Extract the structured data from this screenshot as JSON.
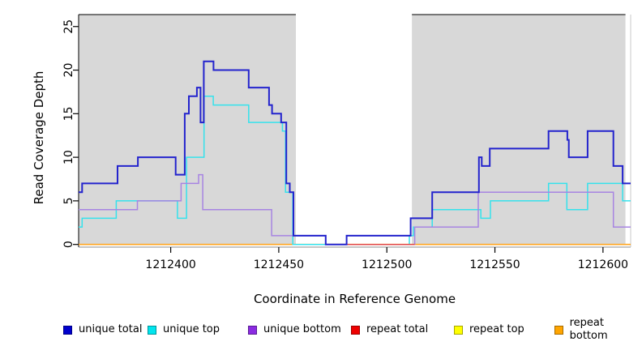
{
  "figure": {
    "title": "",
    "xlabel": "Coordinate in Reference Genome",
    "ylabel": "Read Coverage Depth"
  },
  "chart_data": {
    "type": "line",
    "subtype": "step",
    "title": "",
    "xlabel": "Coordinate in Reference Genome",
    "ylabel": "Read Coverage Depth",
    "xlim": [
      1212357.4,
      1212612.8
    ],
    "ylim": [
      0,
      26.4
    ],
    "x_ticks": [
      1212400,
      1212450,
      1212500,
      1212550,
      1212600
    ],
    "y_ticks": [
      0,
      5,
      10,
      15,
      20,
      25
    ],
    "grid": false,
    "background_color": "#ffffff",
    "shade_color": "#d8d8d8",
    "background_shaded_regions": [
      [
        1212357.4,
        1212457.9
      ],
      [
        1212511.6,
        1212610.4
      ]
    ],
    "legend_position": "bottom",
    "series": [
      {
        "name": "unique total",
        "color": "#2323cd",
        "width": 2,
        "breakpoints": [
          [
            1212357.4,
            6
          ],
          [
            1212359,
            7
          ],
          [
            1212375.4,
            9
          ],
          [
            1212384.8,
            10
          ],
          [
            1212402.3,
            8
          ],
          [
            1212406.5,
            15
          ],
          [
            1212408.4,
            17
          ],
          [
            1212412.1,
            18
          ],
          [
            1212413.8,
            14
          ],
          [
            1212415.3,
            21
          ],
          [
            1212419.8,
            20
          ],
          [
            1212436.1,
            18
          ],
          [
            1212445.5,
            16
          ],
          [
            1212446.9,
            15
          ],
          [
            1212451.1,
            14
          ],
          [
            1212453.5,
            7
          ],
          [
            1212455.1,
            6
          ],
          [
            1212456.8,
            1
          ],
          [
            1212471.7,
            0
          ],
          [
            1212481.4,
            1
          ],
          [
            1212511.0,
            3
          ],
          [
            1212521.0,
            6
          ],
          [
            1212542.6,
            10
          ],
          [
            1212543.9,
            9
          ],
          [
            1212547.6,
            11
          ],
          [
            1212574.8,
            13
          ],
          [
            1212583.5,
            12
          ],
          [
            1212584.2,
            10
          ],
          [
            1212592.9,
            13
          ],
          [
            1212604.8,
            9
          ],
          [
            1212609.1,
            7
          ]
        ]
      },
      {
        "name": "unique top",
        "color": "#35e2ec",
        "width": 1.5,
        "breakpoints": [
          [
            1212357.4,
            2
          ],
          [
            1212359,
            3
          ],
          [
            1212374.8,
            5
          ],
          [
            1212403.1,
            3
          ],
          [
            1212407.3,
            10
          ],
          [
            1212415.4,
            17
          ],
          [
            1212419.7,
            16
          ],
          [
            1212436.1,
            14
          ],
          [
            1212451.7,
            13
          ],
          [
            1212453.1,
            6
          ],
          [
            1212456.5,
            0
          ],
          [
            1212510.4,
            1
          ],
          [
            1212512.3,
            2
          ],
          [
            1212521.0,
            4
          ],
          [
            1212543.5,
            3
          ],
          [
            1212547.9,
            5
          ],
          [
            1212574.8,
            7
          ],
          [
            1212583.3,
            4
          ],
          [
            1212592.9,
            7
          ],
          [
            1212609.1,
            5
          ]
        ]
      },
      {
        "name": "unique bottom",
        "color": "#a784e2",
        "width": 1.5,
        "breakpoints": [
          [
            1212357.4,
            4
          ],
          [
            1212384.6,
            5
          ],
          [
            1212404.8,
            7
          ],
          [
            1212412.9,
            8
          ],
          [
            1212414.8,
            4
          ],
          [
            1212446.7,
            1
          ],
          [
            1212471.7,
            0
          ],
          [
            1212512.9,
            2
          ],
          [
            1212542.3,
            6
          ],
          [
            1212604.8,
            2
          ]
        ]
      },
      {
        "name": "repeat total",
        "color": "#e04848",
        "width": 1.5,
        "breakpoints": [
          [
            1212357.4,
            0
          ]
        ],
        "draw_range": [
          1212471.7,
          1212512.9
        ]
      },
      {
        "name": "repeat top",
        "color": "#ffff00",
        "width": 1.2,
        "breakpoints": [
          [
            1212357.4,
            0
          ]
        ]
      },
      {
        "name": "repeat bottom",
        "color": "#ffa520",
        "width": 1.6,
        "breakpoints": [
          [
            1212357.4,
            0
          ]
        ]
      }
    ],
    "draw_order": [
      "repeat top",
      "repeat bottom",
      "unique top",
      "unique bottom",
      "repeat total",
      "unique total"
    ]
  },
  "legend": {
    "items": [
      {
        "label": "unique total",
        "color": "#0000cd"
      },
      {
        "label": "unique top",
        "color": "#00e5ee"
      },
      {
        "label": "unique bottom",
        "color": "#8b2be2"
      },
      {
        "label": "repeat total",
        "color": "#ee0000"
      },
      {
        "label": "repeat top",
        "color": "#ffff00"
      },
      {
        "label": "repeat bottom",
        "color": "#ffa500"
      }
    ]
  }
}
